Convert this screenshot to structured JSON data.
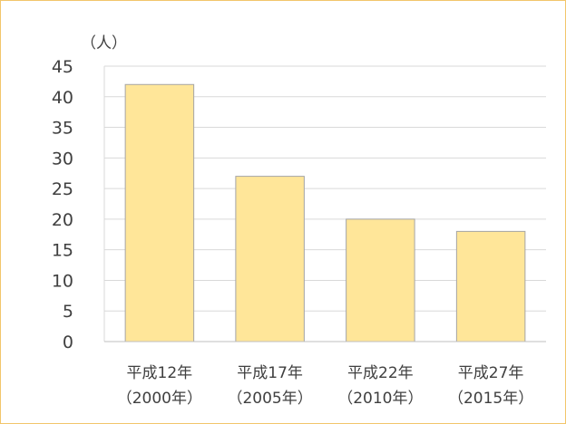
{
  "chart_data": {
    "type": "bar",
    "ylabel": "（人）",
    "categories": [
      {
        "line1": "平成12年",
        "line2": "（2000年）"
      },
      {
        "line1": "平成17年",
        "line2": "（2005年）"
      },
      {
        "line1": "平成22年",
        "line2": "（2010年）"
      },
      {
        "line1": "平成27年",
        "line2": "（2015年）"
      }
    ],
    "values": [
      42,
      27,
      20,
      18
    ],
    "ylim": [
      0,
      45
    ],
    "yticks": [
      0,
      5,
      10,
      15,
      20,
      25,
      30,
      35,
      40,
      45
    ],
    "grid": true,
    "colors": {
      "bar": "#ffe699",
      "bar_edge": "#a5a5a5",
      "grid": "#d9d9d9",
      "frame": "#f2c66b"
    }
  }
}
